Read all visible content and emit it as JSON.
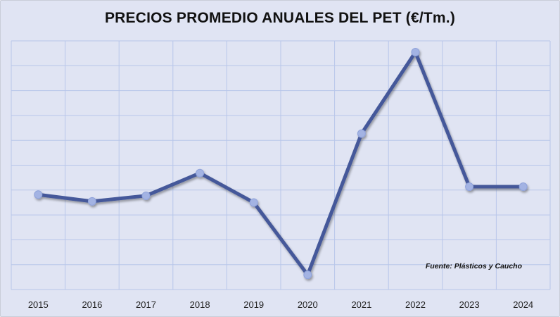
{
  "chart_data": {
    "type": "line",
    "title": "PRECIOS PROMEDIO ANUALES DEL PET (€/Tm.)",
    "xlabel": "",
    "ylabel": "",
    "categories": [
      "2015",
      "2016",
      "2017",
      "2018",
      "2019",
      "2020",
      "2021",
      "2022",
      "2023",
      "2024"
    ],
    "series": [
      {
        "values": [
          37,
          34,
          36.5,
          46.5,
          33.5,
          1.5,
          64,
          100,
          40.5,
          40.5
        ]
      }
    ],
    "ylim": [
      -5,
      105
    ],
    "y_tick_labels_shown": false,
    "grid": true,
    "annotation": "Fuente: Plásticos y Caucho",
    "colors": {
      "background": "#e0e4f3",
      "grid": "#b8c6ea",
      "line": "#44599a",
      "marker": "#a3b3e3"
    }
  }
}
